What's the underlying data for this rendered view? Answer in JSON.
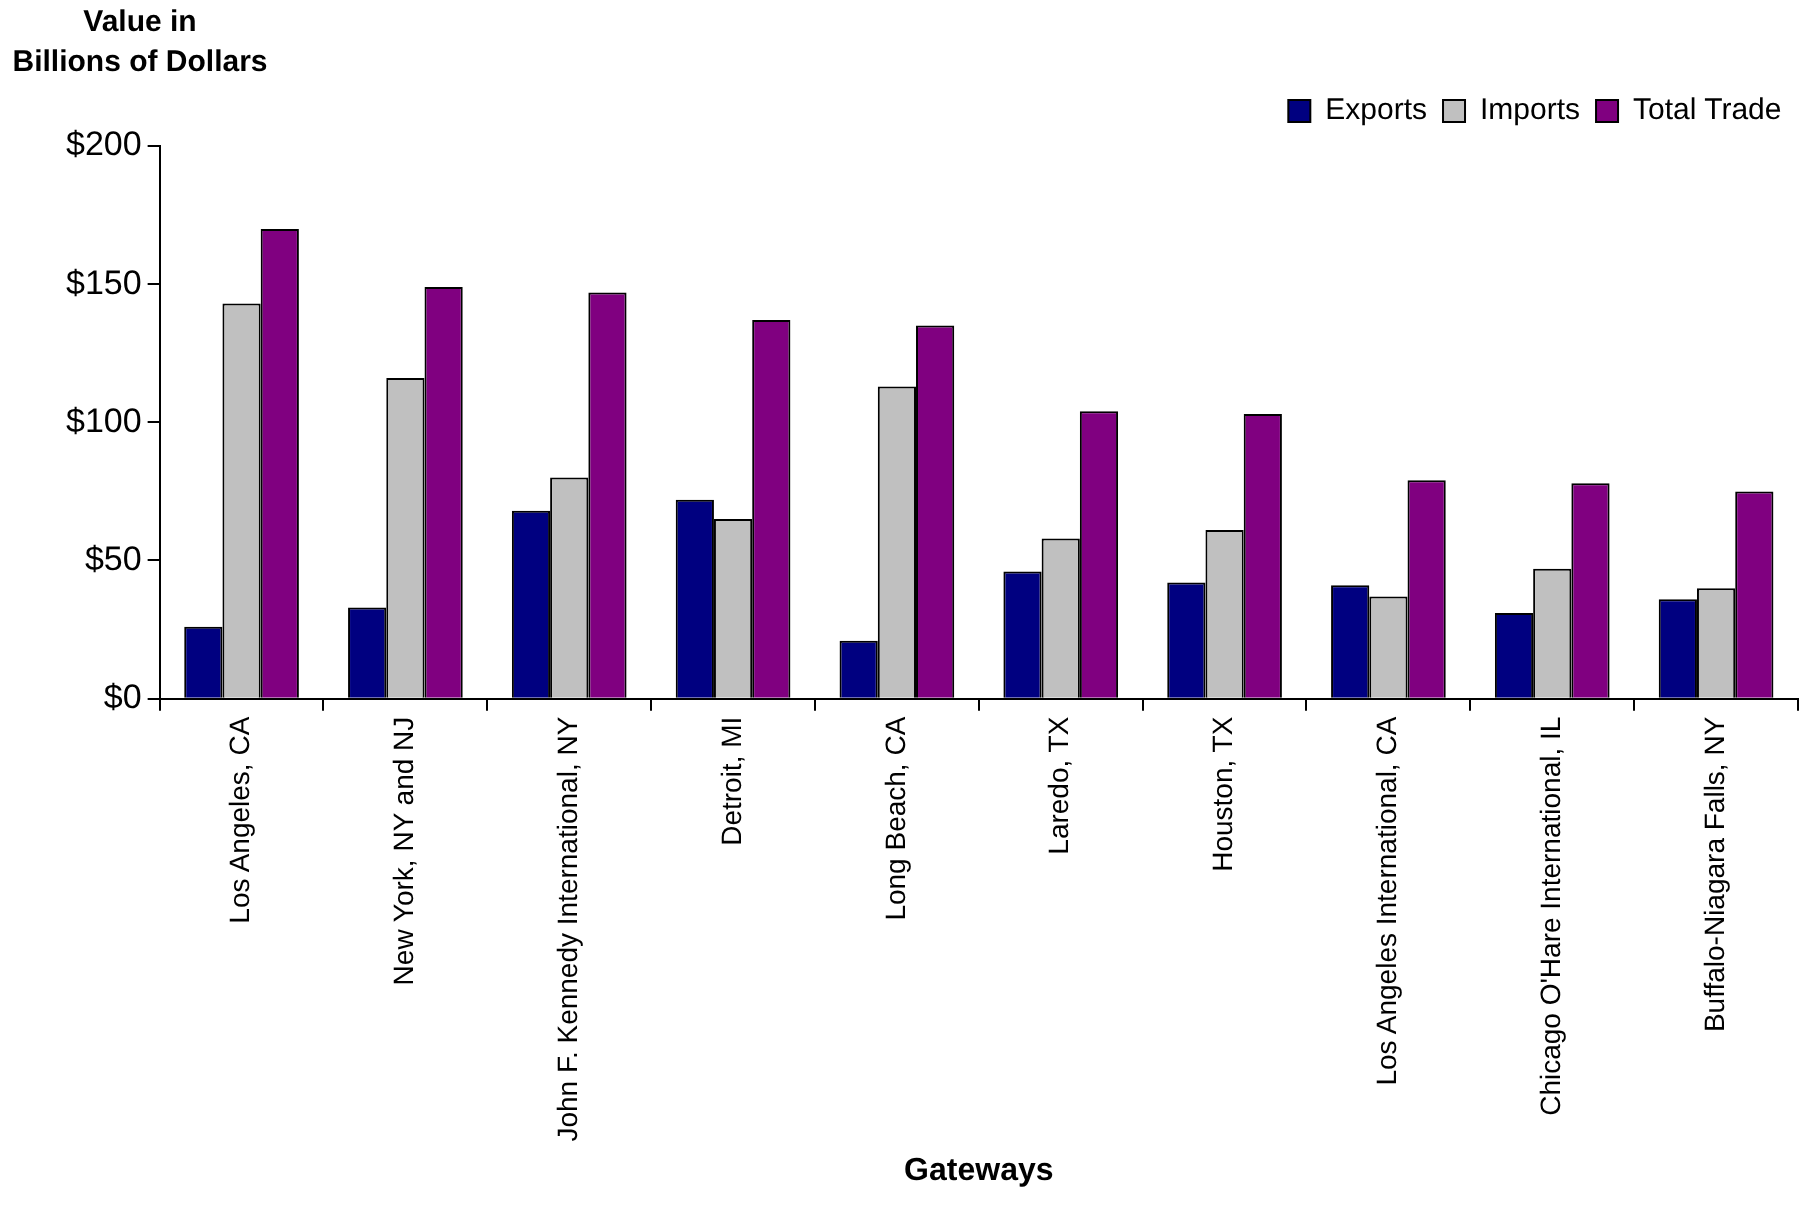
{
  "chart_data": {
    "type": "bar",
    "ylabel": "Value in Billions of Dollars",
    "xlabel": "Gateways",
    "categories": [
      "Los Angeles, CA",
      "New York, NY and NJ",
      "John F. Kennedy International, NY",
      "Detroit, MI",
      "Long Beach, CA",
      "Laredo, TX",
      "Houston, TX",
      "Los Angeles International, CA",
      "Chicago O'Hare International, IL",
      "Buffalo-Niagara Falls, NY"
    ],
    "series": [
      {
        "name": "Exports",
        "color": "#000080",
        "values": [
          26,
          33,
          68,
          72,
          21,
          46,
          42,
          41,
          31,
          36
        ]
      },
      {
        "name": "Imports",
        "color": "#c0c0c0",
        "values": [
          143,
          116,
          80,
          65,
          113,
          58,
          61,
          37,
          47,
          40
        ]
      },
      {
        "name": "Total Trade",
        "color": "#800080",
        "values": [
          170,
          149,
          147,
          137,
          135,
          104,
          103,
          79,
          78,
          75
        ]
      }
    ],
    "ylim": [
      0,
      200
    ],
    "yticks": [
      {
        "value": 0,
        "label": "$0"
      },
      {
        "value": 50,
        "label": "$50"
      },
      {
        "value": 100,
        "label": "$100"
      },
      {
        "value": 150,
        "label": "$150"
      },
      {
        "value": 200,
        "label": "$200"
      }
    ],
    "grid": false,
    "legend": "top right"
  }
}
